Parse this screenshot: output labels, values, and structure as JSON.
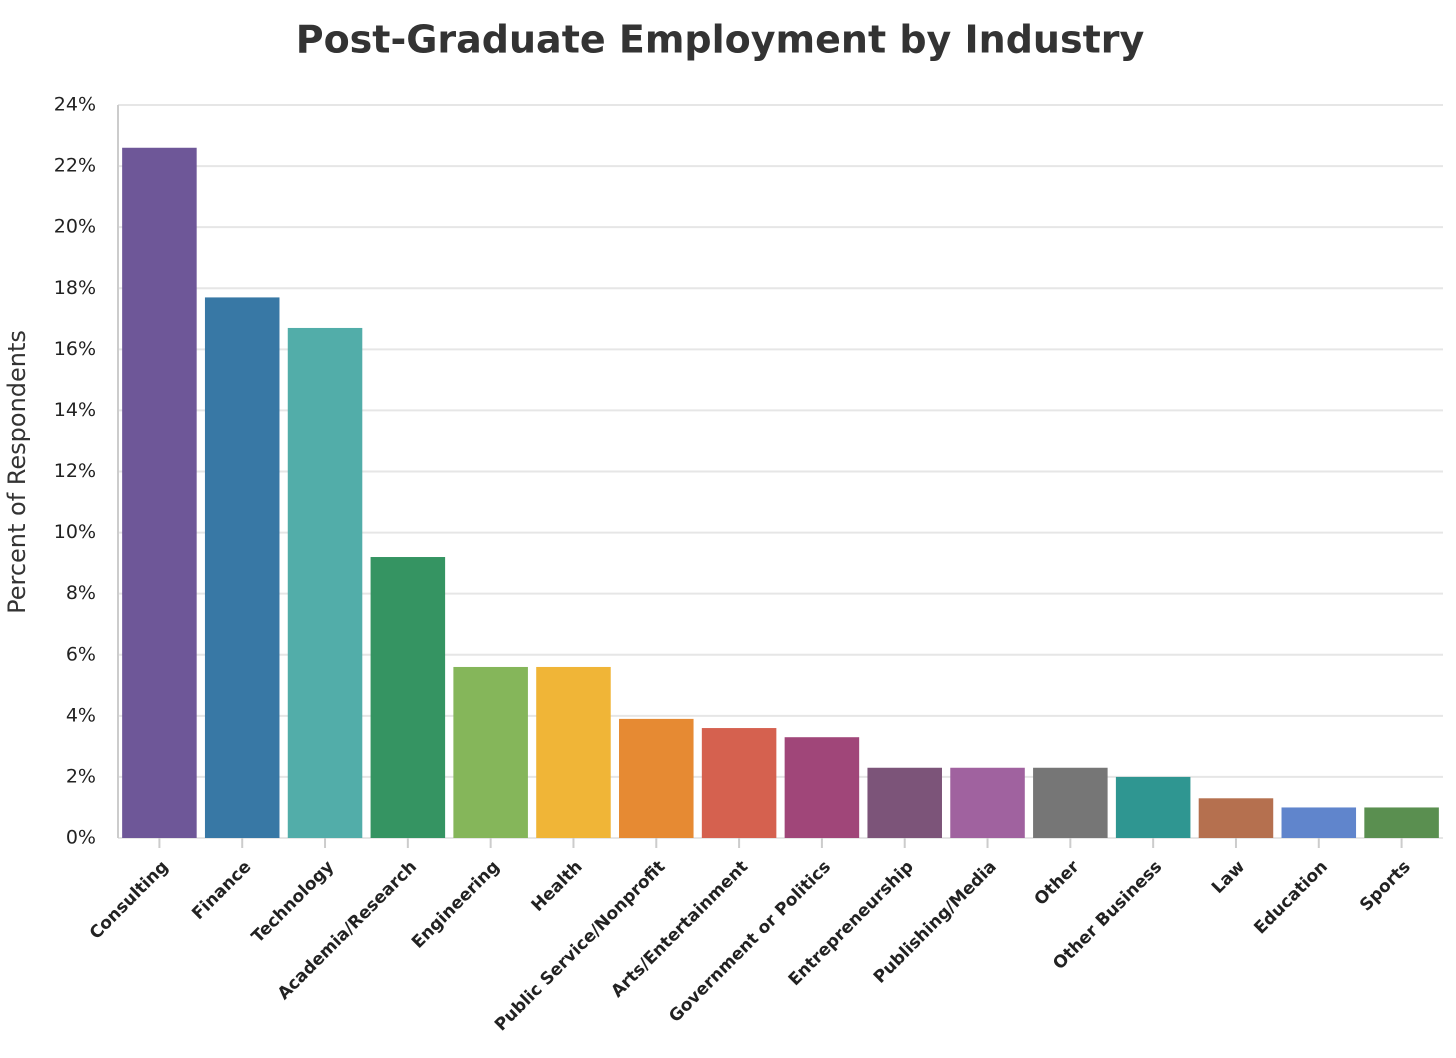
{
  "chart_data": {
    "type": "bar",
    "title": "Post-Graduate Employment by Industry",
    "y_label": "Percent of Respondents",
    "categories": [
      "Consulting",
      "Finance",
      "Technology",
      "Academia/Research",
      "Engineering",
      "Health",
      "Public Service/Nonprofit",
      "Arts/Entertainment",
      "Government or Politics",
      "Entrepreneurship",
      "Publishing/Media",
      "Other",
      "Other Business",
      "Law",
      "Education",
      "Sports"
    ],
    "values": [
      22.6,
      17.7,
      16.7,
      9.2,
      5.6,
      5.6,
      3.9,
      3.6,
      3.3,
      2.3,
      2.3,
      2.3,
      2.0,
      1.3,
      1.0,
      1.0
    ],
    "colors": [
      "#6e5798",
      "#3878a5",
      "#52ada9",
      "#359462",
      "#85b65a",
      "#f0b537",
      "#e68a33",
      "#d5614f",
      "#a04679",
      "#7c5479",
      "#a0629f",
      "#767676",
      "#2f9691",
      "#b5704f",
      "#6085cc",
      "#5a8f50"
    ],
    "ylim": [
      0,
      24
    ],
    "yticks": [
      {
        "value": 0,
        "label": "0%"
      },
      {
        "value": 2,
        "label": "2%"
      },
      {
        "value": 4,
        "label": "4%"
      },
      {
        "value": 6,
        "label": "6%"
      },
      {
        "value": 8,
        "label": "8%"
      },
      {
        "value": 10,
        "label": "10%"
      },
      {
        "value": 12,
        "label": "12%"
      },
      {
        "value": 14,
        "label": "14%"
      },
      {
        "value": 16,
        "label": "16%"
      },
      {
        "value": 18,
        "label": "18%"
      },
      {
        "value": 20,
        "label": "20%"
      },
      {
        "value": 22,
        "label": "22%"
      },
      {
        "value": 24,
        "label": "24%"
      }
    ],
    "grid": true
  }
}
